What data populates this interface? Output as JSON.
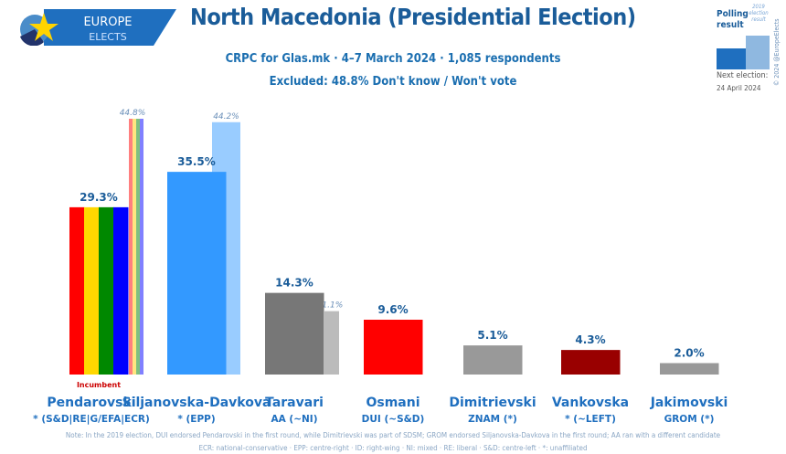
{
  "logo": {
    "line1": "EUROPE",
    "line2": "ELECTS"
  },
  "title": "North Macedonia (Presidential Election)",
  "subtitle": "CRPC for Glas.mk · 4–7 March 2024 · 1,085 respondents",
  "excluded": "Excluded: 48.8% Don't know / Won't vote",
  "legend": {
    "polling": "Polling result",
    "election": "2019 election result",
    "copyright": "© 2024 @EuropeElects",
    "next_label": "Next election:",
    "next_date": "24 April 2024"
  },
  "incumbent_label": "Incumbent",
  "note1": "Note: In the 2019 election, DUI endorsed Pendarovski in the first round, while Dimitrievski was part of SDSM; GROM endorsed Siljanovska-Davkova in the first round; AA ran with a different candidate",
  "note2": "ECR: national-conservative · EPP: centre-right · ID: right-wing · NI: mixed · RE: liberal · S&D: centre-left · *: unaffiliated",
  "chart_data": {
    "type": "bar",
    "categories": [
      "Pendarovski",
      "Siljanovska-Davkova",
      "Taravari",
      "Osmani",
      "Dimitrievski",
      "Vankovska",
      "Jakimovski"
    ],
    "affiliations": [
      "* (S&D|RE|G/EFA|ECR)",
      "* (EPP)",
      "AA (~NI)",
      "DUI (~S&D)",
      "ZNAM (*)",
      "* (~LEFT)",
      "GROM (*)"
    ],
    "series": [
      {
        "name": "Polling result",
        "values": [
          29.3,
          35.5,
          14.3,
          9.6,
          5.1,
          4.3,
          2.0
        ],
        "labels": [
          "29.3%",
          "35.5%",
          "14.3%",
          "9.6%",
          "5.1%",
          "4.3%",
          "2.0%"
        ]
      },
      {
        "name": "2019 election result",
        "values": [
          44.8,
          44.2,
          11.1,
          null,
          null,
          null,
          null
        ],
        "labels": [
          "44.8%",
          "44.2%",
          "11.1%",
          "",
          "",
          "",
          ""
        ]
      }
    ],
    "colors": [
      [
        "#ff0000",
        "#ffd700",
        "#008800",
        "#0000ff"
      ],
      [
        "#3399ff"
      ],
      [
        "#777777"
      ],
      [
        "#ff0000"
      ],
      [
        "#999999"
      ],
      [
        "#990000"
      ],
      [
        "#999999"
      ]
    ],
    "prior_colors": [
      [
        "#ff7f7f",
        "#ffe680",
        "#80c080",
        "#8080ff"
      ],
      [
        "#99ccff"
      ],
      [
        "#bbbbbb"
      ]
    ],
    "ylim": [
      0,
      50
    ]
  }
}
